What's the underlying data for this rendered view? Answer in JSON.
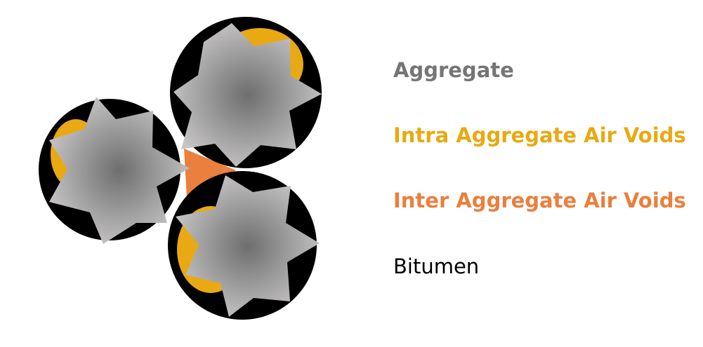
{
  "legend": {
    "aggregate": {
      "label": "Aggregate",
      "color": "#757575"
    },
    "intra": {
      "label": "Intra Aggregate Air Voids",
      "color": "#E8A912"
    },
    "inter": {
      "label": "Inter Aggregate Air Voids",
      "color": "#E9803D"
    },
    "bitumen": {
      "label": "Bitumen",
      "color": "#000000"
    }
  },
  "colors": {
    "aggregate_center": "#6e6e6e",
    "aggregate_edge": "#c8c6c6",
    "intra_void": "#E8A912",
    "inter_void": "#E9803D",
    "bitumen": "#000000"
  }
}
